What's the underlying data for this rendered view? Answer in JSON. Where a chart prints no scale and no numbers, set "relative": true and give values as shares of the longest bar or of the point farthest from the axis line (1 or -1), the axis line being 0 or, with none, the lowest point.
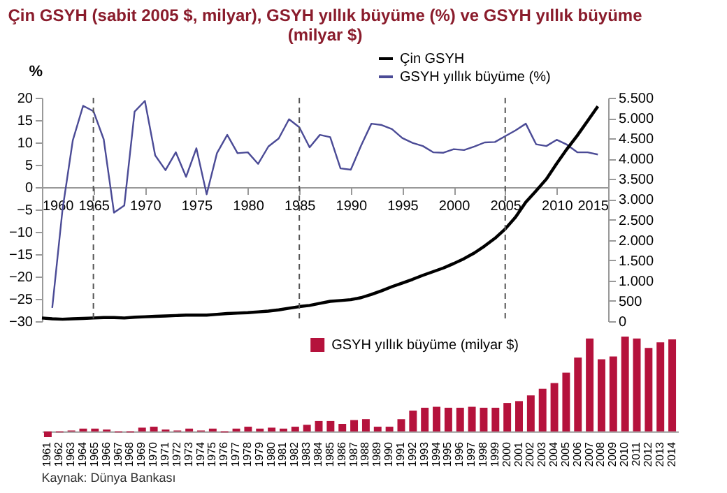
{
  "chart_data": [
    {
      "type": "line",
      "title": "Çin GSYH (sabit 2005 $, milyar), GSYH yıllık büyüme (%) ve GSYH yıllık büyüme (milyar $)",
      "ylabel": "%",
      "xlim": [
        1960,
        2015
      ],
      "xticks": [
        1960,
        1965,
        1970,
        1975,
        1980,
        1985,
        1990,
        1995,
        2000,
        2005,
        2010,
        2015
      ],
      "ylim": [
        -30,
        20
      ],
      "yticks": [
        -30,
        -25,
        -20,
        -15,
        -10,
        -5,
        0,
        5,
        10,
        15,
        20
      ],
      "y2lim": [
        0,
        5500
      ],
      "y2ticks": [
        0,
        500,
        {
          "value": 1000,
          "label": "1.000"
        },
        {
          "value": 1500,
          "label": "1.500"
        },
        {
          "value": 2000,
          "label": "2.000"
        },
        {
          "value": 2500,
          "label": "2.500"
        },
        {
          "value": 3000,
          "label": "3.000"
        },
        {
          "value": 3500,
          "label": "3.500"
        },
        {
          "value": 4000,
          "label": "4.000"
        },
        {
          "value": 4500,
          "label": "4.500"
        },
        {
          "value": 5000,
          "label": "5.000"
        },
        {
          "value": 5500,
          "label": "5.500"
        }
      ],
      "grid": false,
      "legend": "top right",
      "ref_lines": [
        {
          "axis": "x",
          "value": 1965,
          "color": "#555555",
          "line_style": "dashed"
        },
        {
          "axis": "x",
          "value": 1985,
          "color": "#555555",
          "line_style": "dashed"
        },
        {
          "axis": "x",
          "value": 2005,
          "color": "#555555",
          "line_style": "dashed"
        }
      ],
      "series": [
        {
          "name": "Çin GSYH",
          "color": "#000000",
          "axis": "y2",
          "x": [
            1960,
            1961,
            1962,
            1963,
            1964,
            1965,
            1966,
            1967,
            1968,
            1969,
            1970,
            1971,
            1972,
            1973,
            1974,
            1975,
            1976,
            1977,
            1978,
            1979,
            1980,
            1981,
            1982,
            1983,
            1984,
            1985,
            1986,
            1987,
            1988,
            1989,
            1990,
            1991,
            1992,
            1993,
            1994,
            1995,
            1996,
            1997,
            1998,
            1999,
            2000,
            2001,
            2002,
            2003,
            2004,
            2005,
            2006,
            2007,
            2008,
            2009,
            2010,
            2011,
            2012,
            2013,
            2014
          ],
          "values": [
            80,
            60,
            50,
            60,
            70,
            80,
            90,
            90,
            80,
            100,
            110,
            120,
            130,
            140,
            150,
            150,
            150,
            170,
            190,
            200,
            210,
            230,
            250,
            280,
            320,
            360,
            390,
            440,
            490,
            510,
            530,
            580,
            660,
            750,
            850,
            940,
            1030,
            1130,
            1220,
            1310,
            1420,
            1540,
            1680,
            1850,
            2040,
            2270,
            2560,
            2930,
            3210,
            3500,
            3880,
            4240,
            4570,
            4930,
            5290
          ]
        },
        {
          "name": "GSYH yıllık büyüme (%)",
          "color": "#4b4b96",
          "x": [
            1961,
            1962,
            1963,
            1964,
            1965,
            1966,
            1967,
            1968,
            1969,
            1970,
            1971,
            1972,
            1973,
            1974,
            1975,
            1976,
            1977,
            1978,
            1979,
            1980,
            1981,
            1982,
            1983,
            1984,
            1985,
            1986,
            1987,
            1988,
            1989,
            1990,
            1991,
            1992,
            1993,
            1994,
            1995,
            1996,
            1997,
            1998,
            1999,
            2000,
            2001,
            2002,
            2003,
            2004,
            2005,
            2006,
            2007,
            2008,
            2009,
            2010,
            2011,
            2012,
            2013,
            2014
          ],
          "values": [
            -27,
            -5,
            10.5,
            18.2,
            17,
            10.7,
            -5.7,
            -4.1,
            16.9,
            19.3,
            7.1,
            3.8,
            7.8,
            2.3,
            8.7,
            -1.6,
            7.6,
            11.7,
            7.6,
            7.8,
            5.2,
            9.1,
            10.9,
            15.2,
            13.4,
            8.9,
            11.7,
            11.2,
            4.2,
            3.9,
            9.3,
            14.2,
            13.9,
            13,
            11,
            9.9,
            9.2,
            7.8,
            7.7,
            8.5,
            8.3,
            9.1,
            10,
            10.1,
            11.4,
            12.7,
            14.2,
            9.6,
            9.2,
            10.6,
            9.5,
            7.8,
            7.8,
            7.3
          ]
        }
      ]
    },
    {
      "type": "bar",
      "relative": true,
      "legend": "top",
      "annotations": [
        "Kaynak: Dünya Bankası"
      ],
      "categories": [
        "1961",
        "1962",
        "1963",
        "1964",
        "1965",
        "1966",
        "1967",
        "1968",
        "1969",
        "1970",
        "1971",
        "1972",
        "1973",
        "1974",
        "1975",
        "1976",
        "1977",
        "1978",
        "1979",
        "1980",
        "1981",
        "1982",
        "1983",
        "1984",
        "1985",
        "1986",
        "1987",
        "1988",
        "1989",
        "1990",
        "1991",
        "1992",
        "1993",
        "1994",
        "1995",
        "1996",
        "1997",
        "1998",
        "1999",
        "2000",
        "2001",
        "2002",
        "2003",
        "2004",
        "2005",
        "2006",
        "2007",
        "2008",
        "2009",
        "2010",
        "2011",
        "2012",
        "2013",
        "2014"
      ],
      "series": [
        {
          "name": "GSYH yıllık büyüme (milyar $)",
          "color": "#b5123c",
          "values": [
            -0.06,
            -0.01,
            0.01,
            0.03,
            0.03,
            0.02,
            -0.01,
            -0.01,
            0.04,
            0.05,
            0.02,
            0.01,
            0.03,
            0.01,
            0.03,
            -0.01,
            0.03,
            0.05,
            0.03,
            0.04,
            0.03,
            0.05,
            0.07,
            0.11,
            0.11,
            0.08,
            0.12,
            0.13,
            0.05,
            0.05,
            0.13,
            0.22,
            0.25,
            0.26,
            0.25,
            0.25,
            0.26,
            0.25,
            0.25,
            0.3,
            0.32,
            0.38,
            0.45,
            0.51,
            0.62,
            0.78,
            0.98,
            0.76,
            0.79,
            1,
            0.98,
            0.88,
            0.94,
            0.97
          ]
        }
      ]
    }
  ]
}
